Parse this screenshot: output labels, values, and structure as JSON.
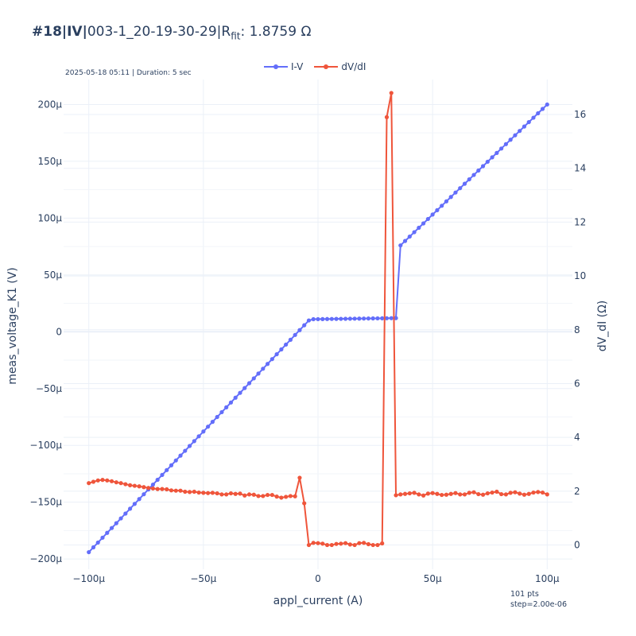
{
  "title": {
    "bold": "#18|IV|",
    "main": "003-1_20-19-30-29|R",
    "sub": "fit",
    "tail": ": 1.8759 Ω"
  },
  "meta_text": "2025-05-18 05:11 | Duration: 5 sec",
  "footer": {
    "pts": "101 pts",
    "step": "step=2.00e-06"
  },
  "colors": {
    "iv": "#636efa",
    "dvdi": "#ef553b",
    "grid": "#ebf0f8",
    "text": "#2a3f5f"
  },
  "chart_data": {
    "type": "line",
    "xlabel": "appl_current (A)",
    "ylabel": "meas_voltage_K1 (V)",
    "y2label": "dV_dI (Ω)",
    "xlim": [
      -0.000111,
      0.000111
    ],
    "ylim": [
      -0.000209,
      0.000222
    ],
    "y2lim": [
      -0.9,
      17.3
    ],
    "x_ticks": [
      {
        "v": -0.0001,
        "label": "−100μ"
      },
      {
        "v": -5e-05,
        "label": "−50μ"
      },
      {
        "v": 0,
        "label": "0"
      },
      {
        "v": 5e-05,
        "label": "50μ"
      },
      {
        "v": 0.0001,
        "label": "100μ"
      }
    ],
    "y_ticks": [
      {
        "v": 0.0002,
        "label": "200μ"
      },
      {
        "v": 0.00015,
        "label": "150μ"
      },
      {
        "v": 0.0001,
        "label": "100μ"
      },
      {
        "v": 5e-05,
        "label": "50μ"
      },
      {
        "v": 0,
        "label": "0"
      },
      {
        "v": -5e-05,
        "label": "−50μ"
      },
      {
        "v": -0.0001,
        "label": "−100μ"
      },
      {
        "v": -0.00015,
        "label": "−150μ"
      },
      {
        "v": -0.0002,
        "label": "−200μ"
      }
    ],
    "y2_ticks": [
      {
        "v": 0,
        "label": "0"
      },
      {
        "v": 2,
        "label": "2"
      },
      {
        "v": 4,
        "label": "4"
      },
      {
        "v": 6,
        "label": "6"
      },
      {
        "v": 8,
        "label": "8"
      },
      {
        "v": 10,
        "label": "10"
      },
      {
        "v": 12,
        "label": "12"
      },
      {
        "v": 14,
        "label": "14"
      },
      {
        "v": 16,
        "label": "16"
      }
    ],
    "legend_position": "top-center",
    "grid": true,
    "series": [
      {
        "name": "I-V",
        "axis": "y",
        "x": [
          -0.0001,
          0.0001
        ],
        "segments": [
          {
            "x_from": -0.0001,
            "x_to": -3.5e-06,
            "y_from": -0.000194,
            "y_to": 1.1e-05
          },
          {
            "x_from": -3.5e-06,
            "x_to": 3.4e-05,
            "y_from": 1.1e-05,
            "y_to": 1.2e-05
          },
          {
            "x_from": 3.6e-05,
            "x_to": 0.0001,
            "y_from": 7.6e-05,
            "y_to": 0.0002
          }
        ],
        "points": 101
      },
      {
        "name": "dV/dI",
        "axis": "y2",
        "x_step": 2e-06,
        "x_start": -0.0001,
        "values": [
          2.3,
          2.35,
          2.4,
          2.42,
          2.4,
          2.37,
          2.33,
          2.3,
          2.26,
          2.22,
          2.2,
          2.18,
          2.15,
          2.12,
          2.1,
          2.08,
          2.08,
          2.07,
          2.03,
          2.02,
          2.02,
          1.98,
          1.97,
          1.98,
          1.95,
          1.94,
          1.93,
          1.94,
          1.92,
          1.88,
          1.88,
          1.92,
          1.9,
          1.91,
          1.84,
          1.88,
          1.87,
          1.82,
          1.82,
          1.86,
          1.86,
          1.8,
          1.76,
          1.79,
          1.82,
          1.81,
          2.5,
          1.55,
          0.0,
          0.08,
          0.07,
          0.05,
          0.0,
          0.0,
          0.04,
          0.05,
          0.07,
          0.02,
          0.0,
          0.07,
          0.08,
          0.03,
          0.0,
          0.0,
          0.06,
          15.9,
          16.8,
          1.85,
          1.88,
          1.9,
          1.92,
          1.94,
          1.88,
          1.84,
          1.91,
          1.93,
          1.9,
          1.86,
          1.87,
          1.9,
          1.93,
          1.88,
          1.88,
          1.94,
          1.96,
          1.89,
          1.87,
          1.92,
          1.95,
          1.98,
          1.89,
          1.88,
          1.94,
          1.96,
          1.91,
          1.87,
          1.9,
          1.95,
          1.97,
          1.95,
          1.88
        ],
        "points": 101
      }
    ]
  }
}
